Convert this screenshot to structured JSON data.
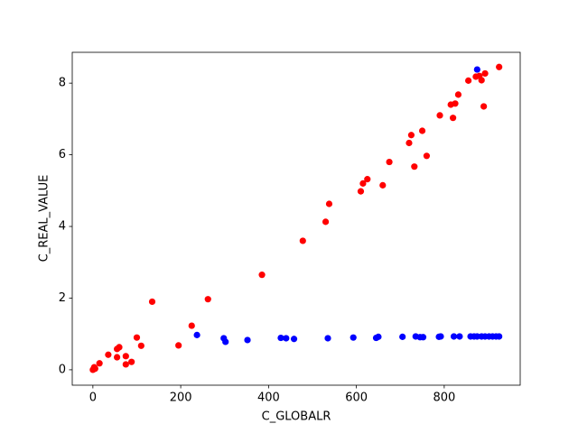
{
  "chart_data": {
    "type": "scatter",
    "x_label": "C_GLOBALR",
    "y_label": "C_REAL_VALUE",
    "xlim": [
      -47,
      973
    ],
    "ylim": [
      -0.43,
      8.86
    ],
    "xticks": [
      0,
      200,
      400,
      600,
      800
    ],
    "yticks": [
      0,
      2,
      4,
      6,
      8
    ],
    "series": [
      {
        "color": "#0000ff",
        "x": [
          237,
          298,
          302,
          352,
          428,
          440,
          458,
          535,
          593,
          645,
          650,
          705,
          735,
          745,
          752,
          788,
          792,
          822,
          835,
          860,
          868,
          875,
          885,
          893,
          902,
          910,
          918,
          925,
          875
        ],
        "values": [
          0.97,
          0.88,
          0.78,
          0.83,
          0.89,
          0.88,
          0.86,
          0.88,
          0.9,
          0.89,
          0.92,
          0.92,
          0.93,
          0.91,
          0.91,
          0.92,
          0.93,
          0.93,
          0.93,
          0.93,
          0.93,
          0.93,
          0.93,
          0.93,
          0.93,
          0.93,
          0.93,
          0.93,
          8.38
        ]
      },
      {
        "color": "#ff0000",
        "x": [
          0,
          2,
          4,
          5,
          3,
          15,
          35,
          55,
          60,
          55,
          75,
          75,
          88,
          100,
          110,
          135,
          195,
          225,
          262,
          385,
          478,
          530,
          538,
          610,
          615,
          625,
          660,
          675,
          720,
          725,
          732,
          750,
          760,
          790,
          815,
          820,
          825,
          832,
          855,
          872,
          880,
          885,
          890,
          893,
          925
        ],
        "values": [
          0,
          0.02,
          0.05,
          0.03,
          0.07,
          0.18,
          0.42,
          0.58,
          0.63,
          0.35,
          0.38,
          0.15,
          0.22,
          0.9,
          0.67,
          1.9,
          0.68,
          1.23,
          1.97,
          2.65,
          3.6,
          4.13,
          4.63,
          4.98,
          5.2,
          5.32,
          5.15,
          5.8,
          6.33,
          6.55,
          5.67,
          6.67,
          5.97,
          7.1,
          7.4,
          7.03,
          7.43,
          7.68,
          8.07,
          8.18,
          8.2,
          8.08,
          7.35,
          8.27,
          8.45
        ]
      }
    ]
  }
}
